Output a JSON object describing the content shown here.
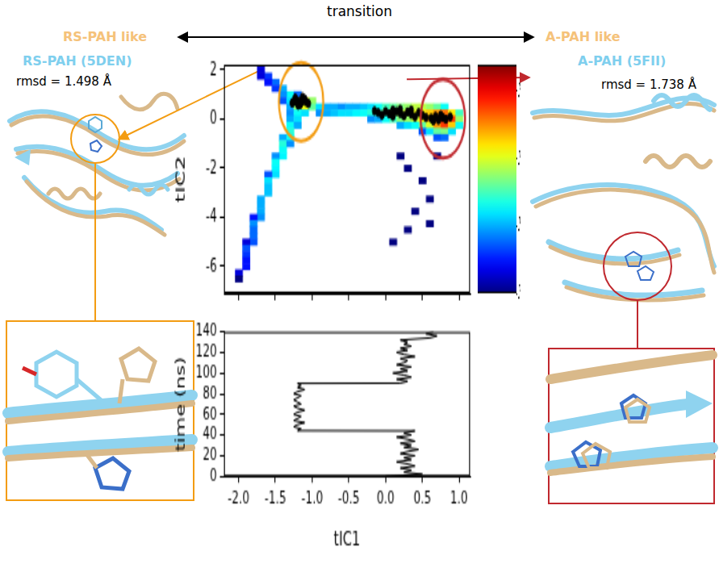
{
  "figure": {
    "header": "transition",
    "left_label": "RS-PAH like",
    "right_label": "A-PAH like",
    "left_structure": {
      "name": "RS-PAH (5DEN)",
      "rmsd": "rmsd = 1.498 Å"
    },
    "right_structure": {
      "name": "A-PAH (5FII)",
      "rmsd": "rmsd = 1.738 Å"
    }
  },
  "chart_data": [
    {
      "type": "heatmap",
      "y_label": "tIC2",
      "xlim": [
        -2.2,
        1.15
      ],
      "ylim": [
        -7.1,
        2.2
      ],
      "xticks": [
        -2,
        -1.5,
        -1,
        -0.5,
        0,
        0.5,
        1
      ],
      "yticks": [
        -6,
        -4,
        -2,
        0,
        2
      ],
      "tick_labels": "y",
      "grid": false,
      "cell_size": [
        0.1,
        0.25
      ],
      "cells": [
        [
          -1.7,
          2.0,
          2
        ],
        [
          -1.6,
          1.75,
          4
        ],
        [
          -1.7,
          1.75,
          2
        ],
        [
          -1.5,
          1.5,
          6
        ],
        [
          -1.6,
          1.5,
          3
        ],
        [
          -1.4,
          1.25,
          10
        ],
        [
          -1.5,
          1.25,
          4
        ],
        [
          -1.3,
          1.0,
          20
        ],
        [
          -1.4,
          1.0,
          8
        ],
        [
          -1.2,
          1.0,
          6
        ],
        [
          -1.4,
          0.75,
          5
        ],
        [
          -1.3,
          0.75,
          15
        ],
        [
          -1.2,
          0.75,
          80
        ],
        [
          -1.1,
          0.75,
          200
        ],
        [
          -1.0,
          0.75,
          60
        ],
        [
          -1.3,
          0.5,
          10
        ],
        [
          -1.2,
          0.5,
          60
        ],
        [
          -1.1,
          0.5,
          120
        ],
        [
          -1.0,
          0.5,
          40
        ],
        [
          -0.9,
          0.5,
          15
        ],
        [
          -0.8,
          0.5,
          10
        ],
        [
          -0.7,
          0.5,
          10
        ],
        [
          -0.6,
          0.5,
          8
        ],
        [
          -0.5,
          0.5,
          10
        ],
        [
          -0.4,
          0.5,
          10
        ],
        [
          -0.3,
          0.5,
          12
        ],
        [
          -0.2,
          0.5,
          15
        ],
        [
          -0.1,
          0.5,
          20
        ],
        [
          0.0,
          0.5,
          30
        ],
        [
          0.1,
          0.5,
          40
        ],
        [
          0.2,
          0.5,
          50
        ],
        [
          0.3,
          0.5,
          60
        ],
        [
          0.4,
          0.5,
          80
        ],
        [
          0.5,
          0.5,
          80
        ],
        [
          0.6,
          0.5,
          60
        ],
        [
          0.7,
          0.5,
          40
        ],
        [
          0.8,
          0.5,
          20
        ],
        [
          -1.3,
          0.25,
          8
        ],
        [
          -1.2,
          0.25,
          20
        ],
        [
          -1.1,
          0.25,
          15
        ],
        [
          -0.9,
          0.25,
          8
        ],
        [
          -0.8,
          0.25,
          10
        ],
        [
          -0.7,
          0.25,
          12
        ],
        [
          -0.6,
          0.25,
          15
        ],
        [
          -0.5,
          0.25,
          15
        ],
        [
          -0.4,
          0.25,
          18
        ],
        [
          -0.3,
          0.25,
          20
        ],
        [
          -0.2,
          0.25,
          25
        ],
        [
          -0.1,
          0.25,
          30
        ],
        [
          0.0,
          0.25,
          40
        ],
        [
          0.1,
          0.25,
          60
        ],
        [
          0.2,
          0.25,
          80
        ],
        [
          0.3,
          0.25,
          100
        ],
        [
          0.4,
          0.25,
          120
        ],
        [
          0.5,
          0.25,
          150
        ],
        [
          0.6,
          0.25,
          200
        ],
        [
          0.7,
          0.25,
          300
        ],
        [
          0.8,
          0.25,
          400
        ],
        [
          0.9,
          0.25,
          150
        ],
        [
          1.0,
          0.25,
          30
        ],
        [
          -1.3,
          0.0,
          10
        ],
        [
          -1.2,
          0.0,
          15
        ],
        [
          -0.2,
          0.0,
          8
        ],
        [
          -0.1,
          0.0,
          10
        ],
        [
          0.0,
          0.0,
          20
        ],
        [
          0.1,
          0.0,
          30
        ],
        [
          0.2,
          0.0,
          50
        ],
        [
          0.3,
          0.0,
          60
        ],
        [
          0.4,
          0.0,
          80
        ],
        [
          0.5,
          0.0,
          150
        ],
        [
          0.6,
          0.0,
          300
        ],
        [
          0.7,
          0.0,
          800
        ],
        [
          0.8,
          0.0,
          2000
        ],
        [
          0.9,
          0.0,
          600
        ],
        [
          1.0,
          0.0,
          60
        ],
        [
          -1.3,
          -0.25,
          20
        ],
        [
          -1.2,
          -0.25,
          10
        ],
        [
          0.2,
          -0.25,
          10
        ],
        [
          0.3,
          -0.25,
          15
        ],
        [
          0.4,
          -0.25,
          20
        ],
        [
          0.5,
          -0.25,
          40
        ],
        [
          0.6,
          -0.25,
          100
        ],
        [
          0.7,
          -0.25,
          300
        ],
        [
          0.8,
          -0.25,
          600
        ],
        [
          0.9,
          -0.25,
          200
        ],
        [
          1.0,
          -0.25,
          20
        ],
        [
          -1.3,
          -0.5,
          25
        ],
        [
          0.5,
          -0.5,
          5
        ],
        [
          0.6,
          -0.5,
          15
        ],
        [
          0.7,
          -0.5,
          40
        ],
        [
          0.8,
          -0.5,
          50
        ],
        [
          0.9,
          -0.5,
          15
        ],
        [
          -1.4,
          -0.75,
          10
        ],
        [
          -1.3,
          -0.75,
          20
        ],
        [
          0.7,
          -0.75,
          5
        ],
        [
          0.8,
          -0.75,
          6
        ],
        [
          -1.4,
          -1.0,
          25
        ],
        [
          -1.3,
          -1.0,
          8
        ],
        [
          -1.4,
          -1.25,
          20
        ],
        [
          -1.4,
          -1.5,
          18
        ],
        [
          -1.5,
          -1.5,
          8
        ],
        [
          -1.5,
          -1.75,
          20
        ],
        [
          -1.5,
          -2.0,
          18
        ],
        [
          -1.5,
          -2.25,
          15
        ],
        [
          -1.6,
          -2.25,
          5
        ],
        [
          -1.6,
          -2.5,
          15
        ],
        [
          -1.6,
          -2.75,
          12
        ],
        [
          -1.6,
          -3.0,
          12
        ],
        [
          -1.7,
          -3.25,
          10
        ],
        [
          -1.7,
          -3.5,
          10
        ],
        [
          -1.7,
          -3.75,
          10
        ],
        [
          -1.7,
          -4.0,
          8
        ],
        [
          -1.8,
          -4.0,
          3
        ],
        [
          -1.8,
          -4.25,
          8
        ],
        [
          -1.8,
          -4.5,
          6
        ],
        [
          -1.8,
          -4.75,
          6
        ],
        [
          -1.8,
          -5.0,
          5
        ],
        [
          -1.9,
          -5.0,
          2
        ],
        [
          -1.9,
          -5.25,
          5
        ],
        [
          -1.9,
          -5.5,
          4
        ],
        [
          -1.9,
          -5.75,
          3
        ],
        [
          -1.9,
          -6.0,
          3
        ],
        [
          -2.0,
          -6.25,
          2
        ],
        [
          -2.0,
          -6.5,
          1
        ],
        [
          0.2,
          -1.5,
          1
        ],
        [
          0.7,
          -1.5,
          1
        ],
        [
          0.3,
          -2.0,
          1
        ],
        [
          0.5,
          -2.5,
          1
        ],
        [
          0.6,
          -3.25,
          1
        ],
        [
          0.4,
          -3.75,
          1
        ],
        [
          0.6,
          -4.25,
          1
        ],
        [
          0.3,
          -4.5,
          1
        ],
        [
          0.1,
          -5.0,
          1
        ]
      ],
      "colorbar_range": [
        1,
        2500
      ],
      "colorbar_ticks": [
        {
          "value": 1,
          "label": "10⁰"
        },
        {
          "value": 10,
          "label": "10¹"
        },
        {
          "value": 100,
          "label": "10²"
        },
        {
          "value": 1000,
          "label": "10³"
        }
      ],
      "trajectory": [
        [
          -1.22,
          0.78
        ],
        [
          -1.18,
          0.72
        ],
        [
          -1.15,
          0.66
        ],
        [
          -1.12,
          0.74
        ],
        [
          -1.2,
          0.62
        ],
        [
          -1.25,
          0.7
        ],
        [
          -1.1,
          0.8
        ],
        [
          -1.16,
          0.58
        ],
        [
          -1.08,
          0.68
        ],
        [
          -1.23,
          0.84
        ],
        [
          -1.13,
          0.88
        ],
        [
          -1.19,
          0.55
        ],
        [
          -1.05,
          0.62
        ],
        [
          -1.27,
          0.64
        ],
        [
          -0.1,
          0.25
        ],
        [
          -0.05,
          0.15
        ],
        [
          0.0,
          0.3
        ],
        [
          0.05,
          0.2
        ],
        [
          0.1,
          0.1
        ],
        [
          0.15,
          0.3
        ],
        [
          0.2,
          0.22
        ],
        [
          0.25,
          0.12
        ],
        [
          0.3,
          0.28
        ],
        [
          0.35,
          0.18
        ],
        [
          0.4,
          0.08
        ],
        [
          0.45,
          0.25
        ],
        [
          0.5,
          0.15
        ],
        [
          0.55,
          0.05
        ],
        [
          0.2,
          0.38
        ],
        [
          0.35,
          0.35
        ],
        [
          0.1,
          0.35
        ],
        [
          -0.15,
          0.32
        ],
        [
          0.62,
          0.02
        ],
        [
          0.68,
          0.1
        ],
        [
          0.72,
          -0.05
        ],
        [
          0.78,
          0.05
        ],
        [
          0.82,
          -0.02
        ],
        [
          0.88,
          0.08
        ],
        [
          0.75,
          0.15
        ],
        [
          0.65,
          -0.08
        ]
      ],
      "highlights": [
        {
          "x": -1.15,
          "y": 0.7,
          "color": "#f39c12"
        },
        {
          "x": 0.78,
          "y": 0.0,
          "color": "#c0282e"
        }
      ]
    },
    {
      "type": "line",
      "x_label": "tIC1",
      "y_label": "time (ns)",
      "xlim": [
        -2.2,
        1.15
      ],
      "ylim": [
        0,
        140
      ],
      "xticks": [
        {
          "value": -2,
          "label": "-2.0"
        },
        {
          "value": -1.5,
          "label": "-1.5"
        },
        {
          "value": -1,
          "label": "-1.0"
        },
        {
          "value": -0.5,
          "label": "-0.5"
        },
        {
          "value": 0,
          "label": "0.0"
        },
        {
          "value": 0.5,
          "label": "0.5"
        },
        {
          "value": 1,
          "label": "1.0"
        }
      ],
      "yticks": [
        0,
        20,
        40,
        60,
        80,
        100,
        120,
        140
      ],
      "grid": false,
      "color": "#000000",
      "x": [
        0.0,
        0.5,
        0.25,
        0.35,
        0.2,
        0.4,
        0.3,
        0.15,
        0.35,
        0.25,
        0.4,
        0.2,
        0.3,
        0.45,
        0.25,
        0.35,
        0.2,
        0.4,
        0.3,
        0.15,
        0.35,
        0.25,
        0.4,
        -1.2,
        -1.15,
        -1.25,
        -1.2,
        -1.1,
        -1.25,
        -1.2,
        -1.15,
        -1.25,
        -1.2,
        -1.1,
        -1.2,
        -1.25,
        -1.15,
        -1.2,
        -1.25,
        -1.2,
        -1.15,
        -1.25,
        -1.2,
        -1.1,
        -1.2,
        -1.15,
        -1.2,
        0.2,
        0.3,
        0.15,
        0.35,
        0.25,
        0.1,
        0.3,
        0.2,
        0.35,
        0.15,
        0.25,
        0.3,
        0.2,
        0.4,
        0.25,
        0.15,
        0.3,
        0.2,
        0.35,
        0.25,
        0.3,
        0.2,
        0.6,
        0.7,
        0.55,
        0.65
      ],
      "y": [
        0,
        2,
        4,
        6,
        8,
        10,
        12,
        14,
        16,
        18,
        20,
        22,
        24,
        26,
        28,
        30,
        32,
        34,
        36,
        38,
        40,
        42,
        44,
        44.2,
        46,
        48,
        50,
        52,
        54,
        56,
        58,
        60,
        62,
        64,
        66,
        68,
        70,
        72,
        74,
        76,
        78,
        80,
        82,
        84,
        86,
        88,
        90,
        90.2,
        92,
        94,
        96,
        98,
        100,
        102,
        104,
        106,
        108,
        110,
        112,
        114,
        116,
        118,
        120,
        122,
        124,
        126,
        128,
        130,
        132,
        134,
        136,
        138,
        140
      ]
    }
  ]
}
